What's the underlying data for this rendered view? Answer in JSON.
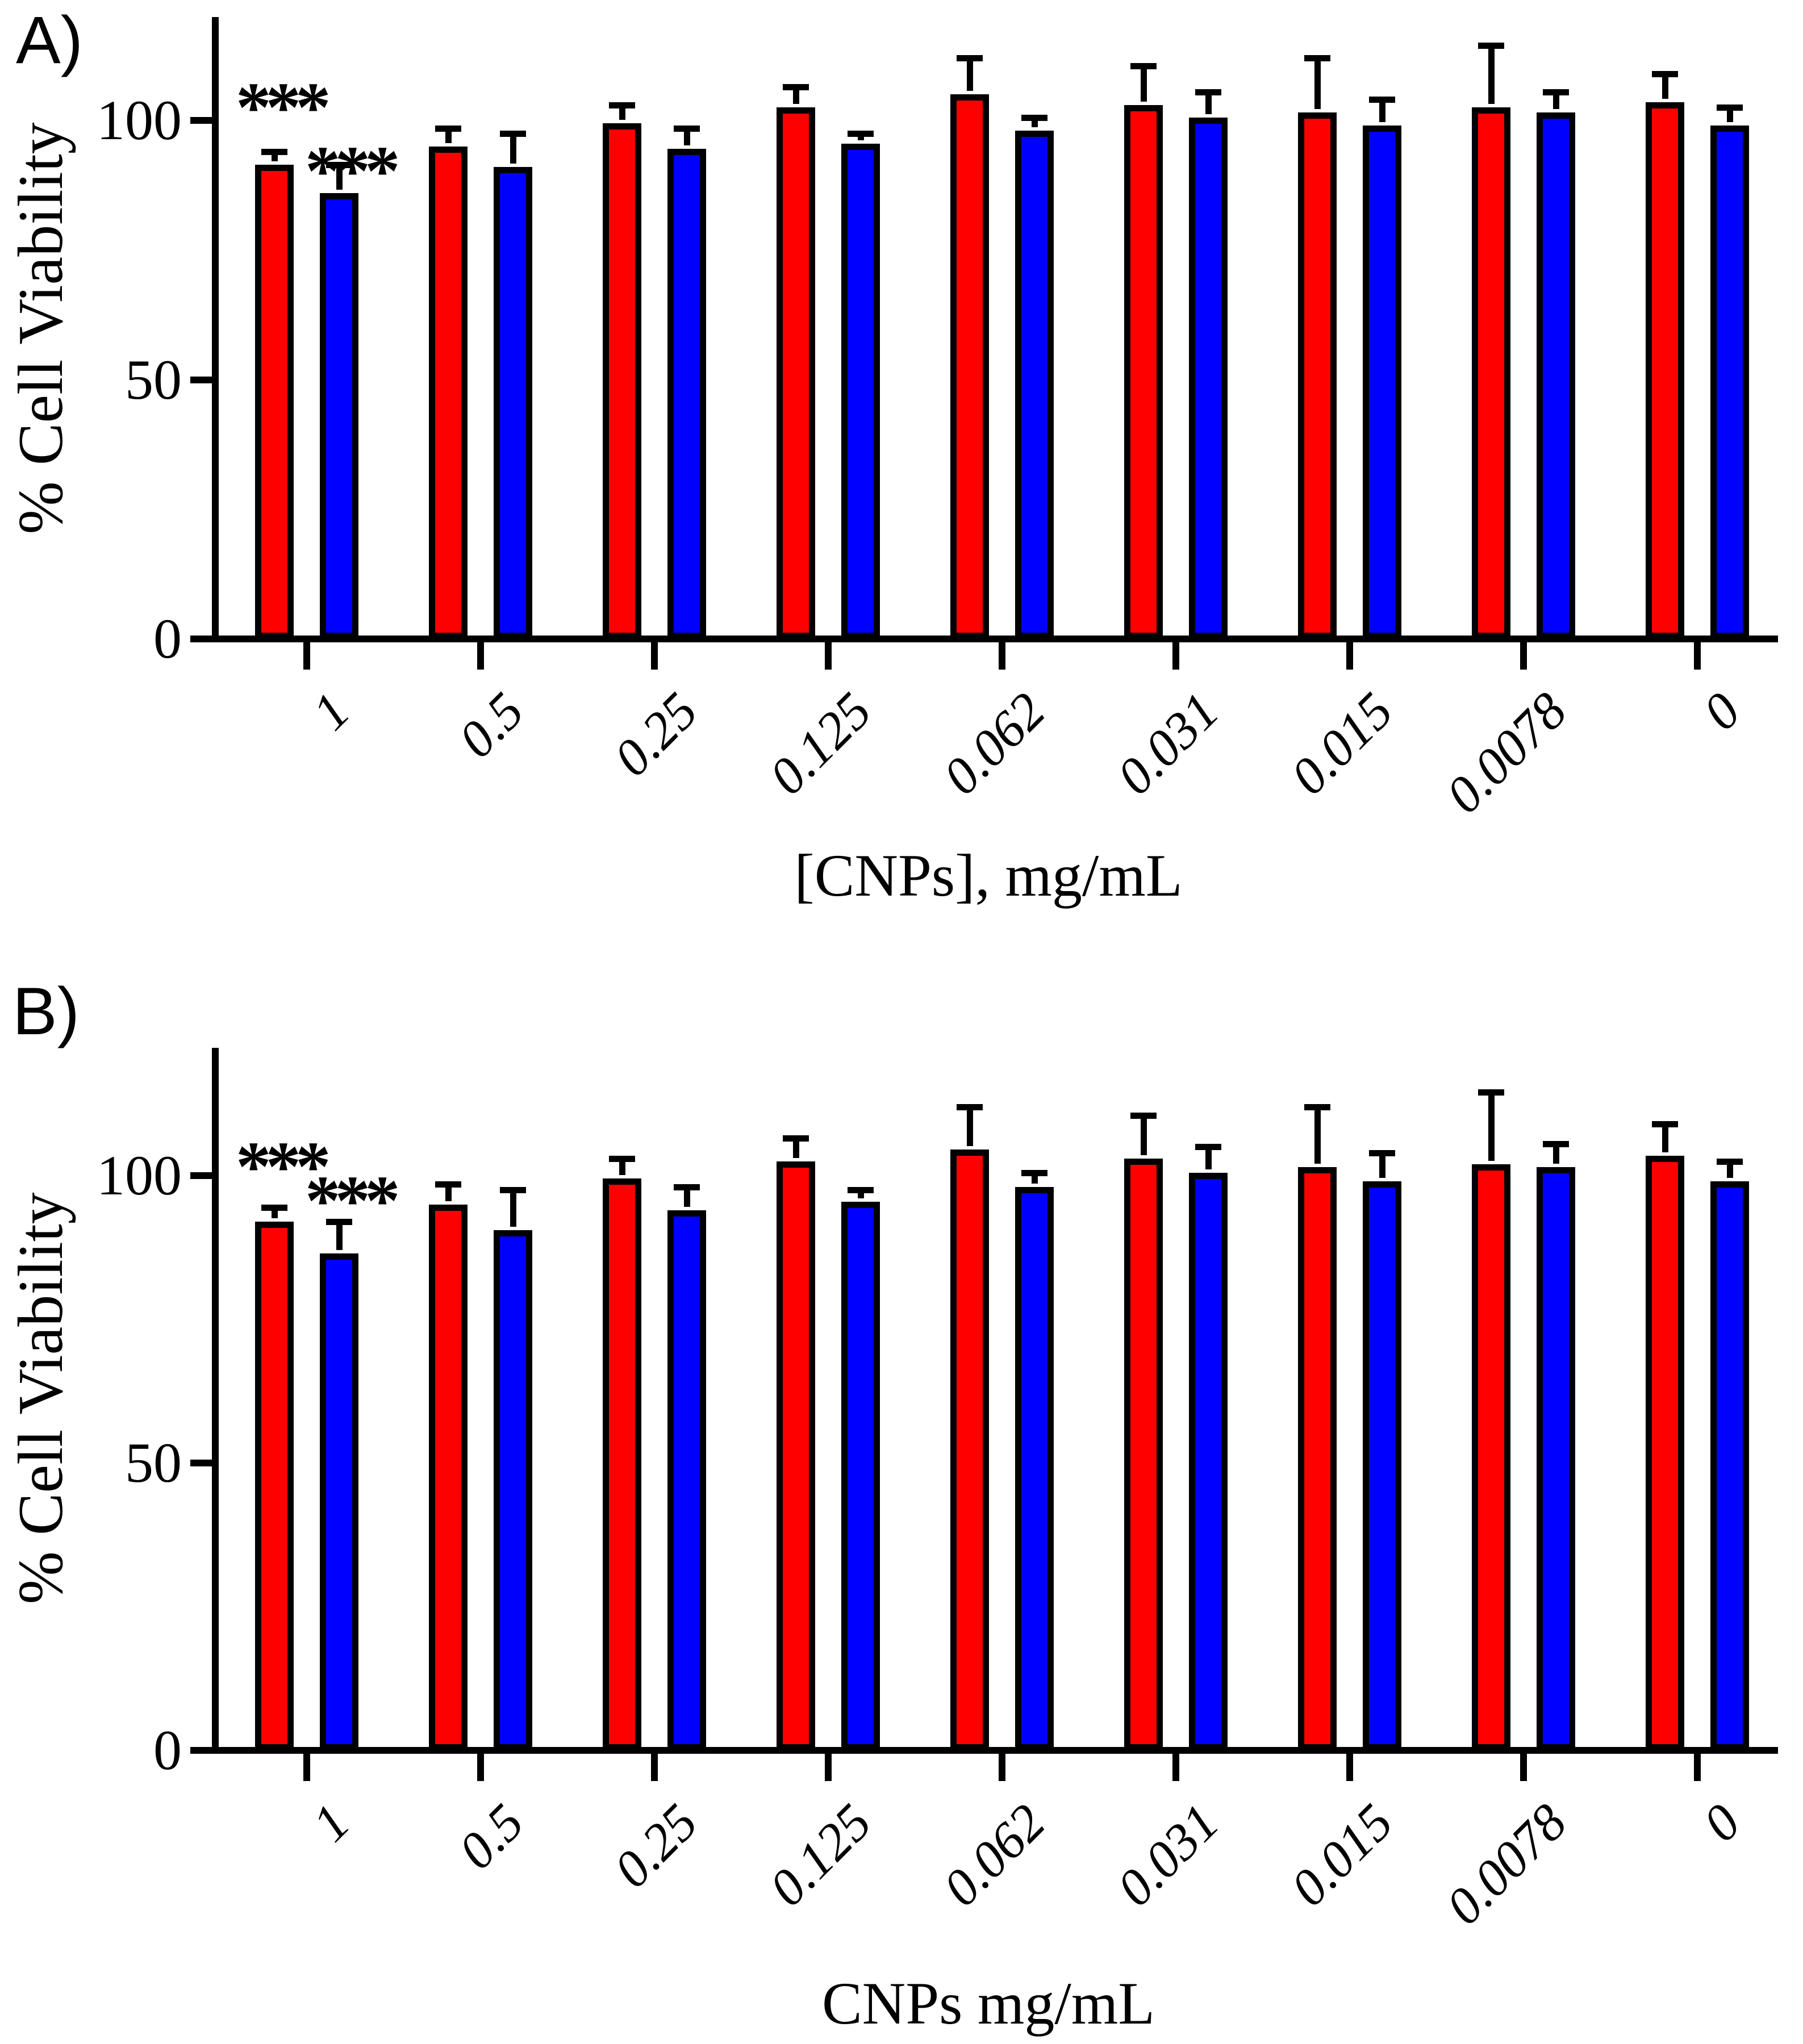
{
  "figure": {
    "panels": [
      {
        "label": "A)",
        "ylabel": "% Cell Viability",
        "xlabel": "[CNPs], mg/mL"
      },
      {
        "label": "B)",
        "ylabel": "% Cell Viability",
        "xlabel": "CNPs mg/mL"
      }
    ],
    "colors": {
      "series1": "#ff0000",
      "series2": "#0000ff",
      "axis": "#000000",
      "background": "#ffffff"
    }
  },
  "chart_data": [
    {
      "type": "bar",
      "panel": "A",
      "title": "",
      "xlabel": "[CNPs], mg/mL",
      "ylabel": "% Cell Viability",
      "categories": [
        "1",
        "0.5",
        "0.25",
        "0.125",
        "0.062",
        "0.031",
        "0.015",
        "0.0078",
        "0"
      ],
      "yticks": [
        0,
        50,
        100
      ],
      "ylim": [
        0,
        120
      ],
      "grid": false,
      "legend": "none",
      "series": [
        {
          "name": "red",
          "color": "#ff0000",
          "values": [
            91.5,
            95,
            99.5,
            102.5,
            105,
            103,
            101.5,
            102.5,
            103.5
          ],
          "errors_plus": [
            2.5,
            3.5,
            3.5,
            4,
            7,
            7.5,
            10.5,
            12,
            5.5
          ]
        },
        {
          "name": "blue",
          "color": "#0000ff",
          "values": [
            86,
            91,
            94.5,
            95.5,
            98,
            100.5,
            99,
            101.5,
            99
          ],
          "errors_plus": [
            5.5,
            6.5,
            4,
            2,
            2.5,
            5,
            5,
            4,
            3.5
          ]
        }
      ],
      "annotations": [
        {
          "text": "***",
          "series": "red",
          "category": "1"
        },
        {
          "text": "***",
          "series": "blue",
          "category": "1"
        }
      ]
    },
    {
      "type": "bar",
      "panel": "B",
      "title": "",
      "xlabel": "CNPs mg/mL",
      "ylabel": "% Cell Viability",
      "categories": [
        "1",
        "0.5",
        "0.25",
        "0.125",
        "0.062",
        "0.031",
        "0.015",
        "0.0078",
        "0"
      ],
      "yticks": [
        0,
        50,
        100
      ],
      "ylim": [
        0,
        120
      ],
      "grid": false,
      "legend": "none",
      "series": [
        {
          "name": "red",
          "color": "#ff0000",
          "values": [
            92,
            95,
            99.5,
            102.5,
            104.5,
            103,
            101.5,
            102,
            103.5
          ],
          "errors_plus": [
            2.5,
            3.5,
            3.5,
            4,
            7.5,
            7.5,
            10.5,
            12.5,
            5.5
          ]
        },
        {
          "name": "blue",
          "color": "#0000ff",
          "values": [
            86.5,
            90.5,
            94,
            95.5,
            98,
            100.5,
            99,
            101.5,
            99
          ],
          "errors_plus": [
            5.5,
            7,
            4,
            2,
            2.5,
            4.5,
            5,
            4,
            3.5
          ]
        }
      ],
      "annotations": [
        {
          "text": "***",
          "series": "red",
          "category": "1"
        },
        {
          "text": "***",
          "series": "blue",
          "category": "1"
        }
      ]
    }
  ]
}
